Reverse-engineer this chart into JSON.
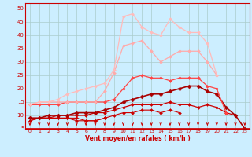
{
  "background_color": "#cceeff",
  "grid_color": "#aacccc",
  "xlabel": "Vent moyen/en rafales ( km/h )",
  "xlim": [
    -0.5,
    23.5
  ],
  "ylim": [
    5,
    52
  ],
  "yticks": [
    5,
    10,
    15,
    20,
    25,
    30,
    35,
    40,
    45,
    50
  ],
  "xticks": [
    0,
    1,
    2,
    3,
    4,
    5,
    6,
    7,
    8,
    9,
    10,
    11,
    12,
    13,
    14,
    15,
    16,
    17,
    18,
    19,
    20,
    21,
    22,
    23
  ],
  "series": [
    {
      "y": [
        8,
        9,
        9,
        9,
        9,
        8,
        8,
        8,
        9,
        null,
        null,
        null,
        null,
        null,
        null,
        null,
        null,
        null,
        null,
        null,
        null,
        null,
        null,
        null
      ],
      "color": "#cc0000",
      "linewidth": 0.8,
      "markersize": 2.0
    },
    {
      "y": [
        8,
        9,
        9,
        9,
        9,
        9,
        8,
        8,
        9,
        10,
        11,
        11,
        12,
        12,
        11,
        12,
        11,
        null,
        null,
        null,
        null,
        null,
        null,
        null
      ],
      "color": "#cc0000",
      "linewidth": 0.8,
      "markersize": 2.0
    },
    {
      "y": [
        9,
        9,
        9,
        10,
        10,
        10,
        10,
        11,
        11,
        12,
        13,
        14,
        14,
        14,
        14,
        15,
        14,
        14,
        13,
        14,
        13,
        11,
        10,
        null
      ],
      "color": "#cc0000",
      "linewidth": 0.9,
      "markersize": 2.0
    },
    {
      "y": [
        9,
        9,
        10,
        10,
        10,
        11,
        11,
        11,
        12,
        13,
        15,
        16,
        17,
        18,
        18,
        19,
        20,
        21,
        21,
        19,
        18,
        13,
        10,
        5
      ],
      "color": "#aa0000",
      "linewidth": 1.2,
      "markersize": 2.5
    },
    {
      "y": [
        14,
        14,
        14,
        14,
        15,
        15,
        15,
        15,
        15,
        16,
        20,
        24,
        25,
        24,
        24,
        23,
        24,
        24,
        24,
        21,
        20,
        11,
        null,
        null
      ],
      "color": "#ff4444",
      "linewidth": 0.9,
      "markersize": 2.0
    },
    {
      "y": [
        14,
        15,
        15,
        15,
        15,
        15,
        15,
        15,
        19,
        26,
        36,
        37,
        38,
        34,
        30,
        32,
        34,
        34,
        34,
        30,
        25,
        null,
        null,
        null
      ],
      "color": "#ffaaaa",
      "linewidth": 0.9,
      "markersize": 2.0
    },
    {
      "y": [
        14,
        15,
        15,
        16,
        18,
        19,
        20,
        21,
        22,
        27,
        47,
        48,
        43,
        41,
        40,
        46,
        43,
        41,
        41,
        37,
        25,
        null,
        null,
        null
      ],
      "color": "#ffbbbb",
      "linewidth": 0.9,
      "markersize": 2.0
    }
  ]
}
